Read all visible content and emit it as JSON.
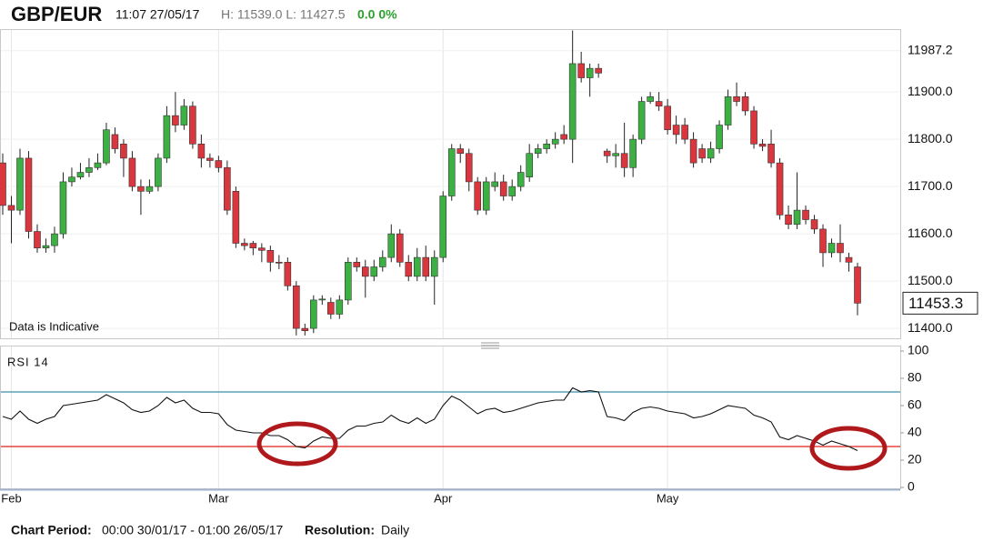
{
  "header": {
    "title": "GBP/EUR",
    "time": "11:07 27/05/17",
    "range": "H: 11539.0 L: 11427.5",
    "change": "0.0 0%"
  },
  "chart_data": [
    {
      "type": "candlestick",
      "annotation": "Data is Indicative",
      "up_color": "#3cb043",
      "down_color": "#d9363e",
      "ylim": [
        11379,
        12033
      ],
      "yticks": [
        {
          "value": 11400,
          "label": "11400.0"
        },
        {
          "value": 11500,
          "label": "11500.0"
        },
        {
          "value": 11600,
          "label": "11600.0"
        },
        {
          "value": 11700,
          "label": "11700.0"
        },
        {
          "value": 11800,
          "label": "11800.0"
        },
        {
          "value": 11900,
          "label": "11900.0"
        },
        11987.2
      ],
      "grid": true,
      "last_price": 11453.3,
      "open": [
        11750,
        11660,
        11650,
        11760,
        11605,
        11570,
        11575,
        11600,
        11710,
        11720,
        11730,
        11740,
        11750,
        11810,
        11790,
        11760,
        11700,
        11690,
        11700,
        11760,
        11850,
        11830,
        11870,
        11790,
        11760,
        11755,
        11740,
        11690,
        11580,
        11580,
        11570,
        11565,
        11540,
        11540,
        11490,
        11400,
        11400,
        11460,
        11455,
        11430,
        11460,
        11540,
        11530,
        11510,
        11530,
        11550,
        11600,
        11540,
        11510,
        11550,
        11510,
        11550,
        11680,
        11780,
        11770,
        11710,
        11650,
        11700,
        11710,
        11680,
        11700,
        11720,
        11770,
        11780,
        11790,
        11810,
        11800,
        11960,
        11930,
        11950,
        11775,
        11765,
        11770,
        11740,
        11800,
        11880,
        11880,
        11870,
        11830,
        11830,
        11800,
        11780,
        11760,
        11780,
        11830,
        11890,
        11890,
        11860,
        11790,
        11790,
        11750,
        11640,
        11620,
        11650,
        11630,
        11610,
        11560,
        11580,
        11550,
        11530
      ],
      "high": [
        11770,
        11680,
        11780,
        11775,
        11620,
        11590,
        11615,
        11730,
        11740,
        11750,
        11760,
        11770,
        11835,
        11825,
        11800,
        11775,
        11715,
        11715,
        11770,
        11870,
        11900,
        11885,
        11880,
        11810,
        11770,
        11765,
        11755,
        11700,
        11590,
        11585,
        11580,
        11575,
        11555,
        11550,
        11500,
        11410,
        11470,
        11470,
        11465,
        11470,
        11550,
        11550,
        11545,
        11545,
        11565,
        11620,
        11610,
        11555,
        11570,
        11575,
        11565,
        11690,
        11790,
        11790,
        11780,
        11720,
        11720,
        11730,
        11725,
        11715,
        11745,
        11790,
        11790,
        11800,
        11815,
        11830,
        12030,
        11985,
        11960,
        11960,
        11780,
        11790,
        11835,
        11810,
        11890,
        11900,
        11900,
        11885,
        11850,
        11845,
        11815,
        11790,
        11795,
        11840,
        11905,
        11920,
        11900,
        11870,
        11800,
        11820,
        11760,
        11660,
        11730,
        11660,
        11640,
        11620,
        11590,
        11620,
        11560,
        11539
      ],
      "low": [
        11640,
        11580,
        11640,
        11590,
        11560,
        11560,
        11560,
        11590,
        11700,
        11715,
        11720,
        11735,
        11745,
        11770,
        11720,
        11690,
        11640,
        11685,
        11690,
        11750,
        11815,
        11820,
        11780,
        11740,
        11740,
        11730,
        11640,
        11570,
        11565,
        11555,
        11540,
        11520,
        11525,
        11480,
        11385,
        11385,
        11390,
        11450,
        11420,
        11420,
        11450,
        11520,
        11465,
        11500,
        11520,
        11540,
        11530,
        11500,
        11500,
        11500,
        11450,
        11540,
        11670,
        11750,
        11690,
        11640,
        11640,
        11690,
        11670,
        11670,
        11690,
        11710,
        11760,
        11770,
        11780,
        11790,
        11750,
        11920,
        11890,
        11930,
        11750,
        11740,
        11720,
        11720,
        11790,
        11875,
        11860,
        11810,
        11790,
        11790,
        11740,
        11750,
        11750,
        11770,
        11820,
        11870,
        11850,
        11780,
        11775,
        11740,
        11630,
        11610,
        11610,
        11620,
        11600,
        11530,
        11550,
        11540,
        11520,
        11427.5
      ],
      "close": [
        11660,
        11650,
        11760,
        11605,
        11570,
        11575,
        11600,
        11710,
        11720,
        11730,
        11740,
        11750,
        11820,
        11780,
        11760,
        11700,
        11690,
        11700,
        11760,
        11850,
        11830,
        11870,
        11790,
        11760,
        11755,
        11740,
        11650,
        11580,
        11575,
        11570,
        11565,
        11540,
        11538,
        11490,
        11400,
        11395,
        11460,
        11462,
        11430,
        11460,
        11540,
        11530,
        11510,
        11530,
        11550,
        11600,
        11540,
        11510,
        11550,
        11510,
        11550,
        11680,
        11780,
        11770,
        11710,
        11650,
        11710,
        11710,
        11680,
        11700,
        11730,
        11770,
        11780,
        11790,
        11800,
        11800,
        11960,
        11930,
        11950,
        11940,
        11765,
        11770,
        11740,
        11800,
        11880,
        11890,
        11870,
        11820,
        11810,
        11800,
        11750,
        11760,
        11780,
        11830,
        11890,
        11880,
        11860,
        11790,
        11785,
        11750,
        11640,
        11620,
        11650,
        11630,
        11610,
        11560,
        11580,
        11560,
        11540,
        11453.3
      ]
    },
    {
      "type": "line",
      "title": "RSI 14",
      "color": "#111111",
      "ylim": [
        0,
        100
      ],
      "yticks": [
        0,
        20,
        40,
        60,
        80,
        100
      ],
      "levels": [
        {
          "value": 70,
          "color": "#3f8fa6"
        },
        {
          "value": 30,
          "color": "#e0221b"
        }
      ],
      "categories": [
        null,
        "Feb",
        null,
        null,
        null,
        null,
        null,
        null,
        null,
        null,
        null,
        null,
        null,
        null,
        null,
        null,
        null,
        null,
        null,
        null,
        null,
        null,
        null,
        null,
        null,
        "Mar",
        null,
        null,
        null,
        null,
        null,
        null,
        null,
        null,
        null,
        null,
        null,
        null,
        null,
        null,
        null,
        null,
        null,
        null,
        null,
        null,
        null,
        null,
        null,
        null,
        null,
        "Apr",
        null,
        null,
        null,
        null,
        null,
        null,
        null,
        null,
        null,
        null,
        null,
        null,
        null,
        null,
        null,
        null,
        null,
        null,
        null,
        null,
        null,
        null,
        null,
        null,
        null,
        "May",
        null,
        null,
        null,
        null,
        null,
        null,
        null,
        null,
        null,
        null,
        null,
        null,
        null,
        null,
        null,
        null,
        null,
        null,
        null,
        null,
        null,
        null
      ],
      "values": [
        52,
        50,
        56,
        50,
        47,
        50,
        52,
        60,
        61,
        62,
        63,
        64,
        68,
        65,
        62,
        57,
        55,
        56,
        60,
        66,
        62,
        64,
        58,
        55,
        55,
        54,
        46,
        42,
        41,
        40,
        40,
        38,
        38,
        35,
        30,
        29,
        34,
        37,
        36,
        36,
        42,
        45,
        45,
        47,
        48,
        53,
        49,
        47,
        51,
        47,
        50,
        60,
        67,
        64,
        59,
        54,
        57,
        58,
        55,
        56,
        58,
        60,
        62,
        63,
        64,
        64,
        73,
        70,
        71,
        70,
        52,
        51,
        49,
        55,
        58,
        59,
        58,
        56,
        55,
        54,
        51,
        52,
        54,
        57,
        60,
        59,
        58,
        53,
        51,
        48,
        37,
        35,
        38,
        36,
        34,
        31,
        34,
        32,
        30,
        27
      ]
    }
  ],
  "footer": {
    "period_label": "Chart Period:",
    "period": "00:00 30/01/17 - 01:00 26/05/17",
    "resolution_label": "Resolution:",
    "resolution": "Daily"
  }
}
